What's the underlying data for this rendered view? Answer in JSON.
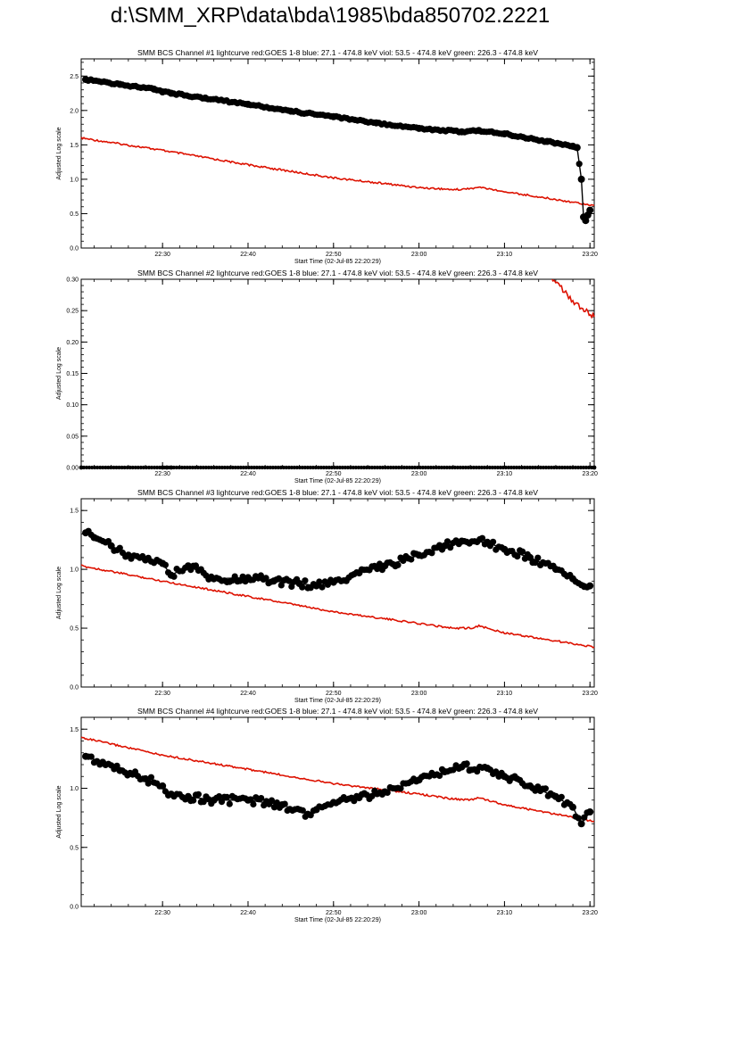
{
  "page": {
    "title": "d:\\SMM_XRP\\data\\bda\\1985\\bda850702.2221"
  },
  "colors": {
    "goes": "#dd1100",
    "bcs": "#000000",
    "axis": "#000000",
    "background": "#ffffff"
  },
  "chart_data": [
    {
      "type": "line",
      "title": "SMM BCS Channel #1 lightcurve  red:GOES 1-8  blue: 27.1 - 474.8 keV  viol: 53.5 - 474.8 keV  green: 226.3 - 474.8 keV",
      "xlabel": "Start Time (02-Jul-85 22:20:29)",
      "ylabel": "Adjusted Log scale",
      "xlim": [
        "22:20:29",
        "23:20:30"
      ],
      "ylim": [
        0.0,
        2.75
      ],
      "x_ticks": [
        "22:30",
        "22:40",
        "22:50",
        "23:00",
        "23:10",
        "23:20"
      ],
      "y_ticks": [
        "0.0",
        "0.5",
        "1.0",
        "1.5",
        "2.0",
        "2.5"
      ],
      "series": [
        {
          "name": "red:GOES 1-8",
          "color": "#dd1100",
          "marker": "none",
          "x": [
            "22:20:29",
            "22:30",
            "22:40",
            "22:50",
            "23:00",
            "23:04",
            "23:06",
            "23:07",
            "23:09",
            "23:10",
            "23:20:30"
          ],
          "y": [
            1.6,
            1.42,
            1.21,
            1.02,
            0.88,
            0.85,
            0.86,
            0.89,
            0.84,
            0.82,
            0.62
          ]
        },
        {
          "name": "BCS",
          "color": "#000000",
          "marker": "circle",
          "x": [
            "22:21",
            "22:25",
            "22:29",
            "22:30",
            "22:31",
            "22:35",
            "22:40",
            "22:45",
            "22:50",
            "22:55",
            "23:00",
            "23:05",
            "23:07",
            "23:10",
            "23:15",
            "23:18",
            "23:18:30",
            "23:19",
            "23:19:15",
            "23:19:30",
            "23:19:45",
            "23:20"
          ],
          "y": [
            2.45,
            2.38,
            2.31,
            2.27,
            2.25,
            2.18,
            2.09,
            1.99,
            1.91,
            1.82,
            1.74,
            1.69,
            1.71,
            1.66,
            1.55,
            1.48,
            1.46,
            1.0,
            0.45,
            0.4,
            0.48,
            0.55
          ]
        }
      ]
    },
    {
      "type": "line",
      "title": "SMM BCS Channel #2 lightcurve  red:GOES 1-8  blue: 27.1 - 474.8 keV  viol: 53.5 - 474.8 keV  green: 226.3 - 474.8 keV",
      "xlabel": "Start Time (02-Jul-85 22:20:29)",
      "ylabel": "Adjusted Log scale",
      "xlim": [
        "22:20:29",
        "23:20:30"
      ],
      "ylim": [
        0.0,
        0.3
      ],
      "x_ticks": [
        "22:30",
        "22:40",
        "22:50",
        "23:00",
        "23:10",
        "23:20"
      ],
      "y_ticks": [
        "0.00",
        "0.05",
        "0.10",
        "0.15",
        "0.20",
        "0.25",
        "0.30"
      ],
      "series": [
        {
          "name": "red:GOES 1-8",
          "color": "#dd1100",
          "marker": "none",
          "x": [
            "23:15:30",
            "23:16",
            "23:17",
            "23:18",
            "23:19",
            "23:20:30"
          ],
          "y": [
            0.3,
            0.298,
            0.28,
            0.265,
            0.255,
            0.24
          ]
        },
        {
          "name": "BCS",
          "color": "#000000",
          "marker": "circle",
          "x": [
            "22:20:29",
            "22:30",
            "22:30:30",
            "22:31",
            "23:20:30"
          ],
          "y": [
            0.0,
            0.0,
            0.0,
            0.0,
            0.0
          ]
        }
      ]
    },
    {
      "type": "line",
      "title": "SMM BCS Channel #3 lightcurve  red:GOES 1-8  blue: 27.1 - 474.8 keV  viol: 53.5 - 474.8 keV  green: 226.3 - 474.8 keV",
      "xlabel": "Start Time (02-Jul-85 22:20:29)",
      "ylabel": "Adjusted Log scale",
      "xlim": [
        "22:20:29",
        "23:20:30"
      ],
      "ylim": [
        0.0,
        1.6
      ],
      "x_ticks": [
        "22:30",
        "22:40",
        "22:50",
        "23:00",
        "23:10",
        "23:20"
      ],
      "y_ticks": [
        "0.0",
        "0.5",
        "1.0",
        "1.5"
      ],
      "series": [
        {
          "name": "red:GOES 1-8",
          "color": "#dd1100",
          "marker": "none",
          "x": [
            "22:20:29",
            "22:30",
            "22:40",
            "22:50",
            "23:00",
            "23:04",
            "23:06",
            "23:07",
            "23:09",
            "23:10",
            "23:20:30"
          ],
          "y": [
            1.03,
            0.9,
            0.77,
            0.64,
            0.54,
            0.5,
            0.5,
            0.52,
            0.48,
            0.46,
            0.34
          ]
        },
        {
          "name": "BCS",
          "color": "#000000",
          "marker": "circle",
          "x": [
            "22:21",
            "22:22",
            "22:24",
            "22:26",
            "22:28",
            "22:30",
            "22:31",
            "22:33",
            "22:36",
            "22:40",
            "22:43",
            "22:46",
            "22:48",
            "22:50",
            "22:53",
            "22:56",
            "23:00",
            "23:03",
            "23:05",
            "23:08",
            "23:10",
            "23:13",
            "23:16",
            "23:18",
            "23:20"
          ],
          "y": [
            1.31,
            1.27,
            1.2,
            1.12,
            1.08,
            1.05,
            0.95,
            1.03,
            0.92,
            0.93,
            0.9,
            0.88,
            0.86,
            0.89,
            0.97,
            1.03,
            1.12,
            1.2,
            1.24,
            1.23,
            1.17,
            1.1,
            1.0,
            0.92,
            0.86
          ]
        }
      ]
    },
    {
      "type": "line",
      "title": "SMM BCS Channel #4 lightcurve  red:GOES 1-8  blue: 27.1 - 474.8 keV  viol: 53.5 - 474.8 keV  green: 226.3 - 474.8 keV",
      "xlabel": "Start Time (02-Jul-85 22:20:29)",
      "ylabel": "Adjusted Log scale",
      "xlim": [
        "22:20:29",
        "23:20:30"
      ],
      "ylim": [
        0.0,
        1.6
      ],
      "x_ticks": [
        "22:30",
        "22:40",
        "22:50",
        "23:00",
        "23:10",
        "23:20"
      ],
      "y_ticks": [
        "0.0",
        "0.5",
        "1.0",
        "1.5"
      ],
      "series": [
        {
          "name": "red:GOES 1-8",
          "color": "#dd1100",
          "marker": "none",
          "x": [
            "22:20:29",
            "22:30",
            "22:40",
            "22:50",
            "23:00",
            "23:04",
            "23:06",
            "23:07",
            "23:09",
            "23:10",
            "23:20:30"
          ],
          "y": [
            1.43,
            1.28,
            1.16,
            1.04,
            0.95,
            0.91,
            0.9,
            0.92,
            0.88,
            0.86,
            0.72
          ]
        },
        {
          "name": "BCS",
          "color": "#000000",
          "marker": "circle",
          "x": [
            "22:21",
            "22:23",
            "22:25",
            "22:28",
            "22:30",
            "22:31",
            "22:33",
            "22:36",
            "22:40",
            "22:44",
            "22:47",
            "22:48",
            "22:50",
            "22:53",
            "22:56",
            "23:00",
            "23:03",
            "23:05",
            "23:08",
            "23:10",
            "23:13",
            "23:16",
            "23:18",
            "23:19",
            "23:20"
          ],
          "y": [
            1.27,
            1.22,
            1.15,
            1.08,
            1.02,
            0.95,
            0.93,
            0.9,
            0.9,
            0.86,
            0.78,
            0.82,
            0.88,
            0.92,
            0.97,
            1.07,
            1.14,
            1.18,
            1.17,
            1.1,
            1.02,
            0.93,
            0.84,
            0.7,
            0.8
          ]
        }
      ]
    }
  ]
}
